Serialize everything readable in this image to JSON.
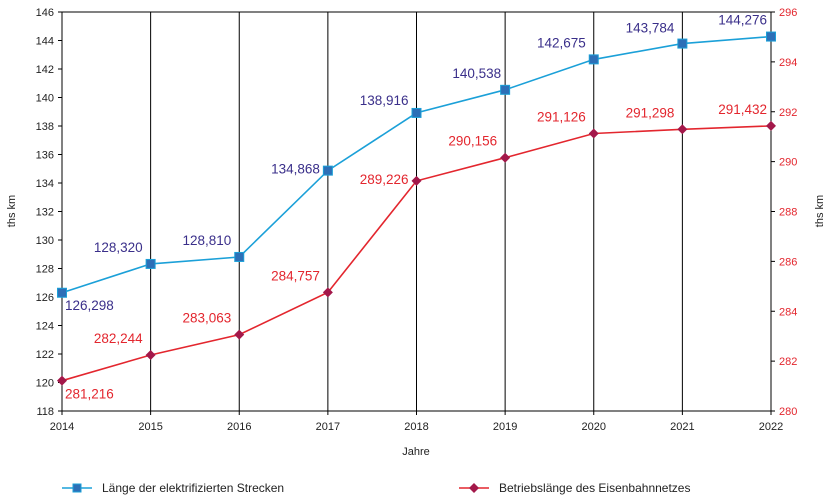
{
  "chart_data": {
    "type": "line",
    "categories": [
      "2014",
      "2015",
      "2016",
      "2017",
      "2018",
      "2019",
      "2020",
      "2021",
      "2022"
    ],
    "xlabel": "Jahre",
    "ylabel_left": "ths km",
    "ylabel_right": "ths km",
    "y_left": {
      "min": 118,
      "max": 146,
      "step": 2
    },
    "y_right": {
      "min": 280,
      "max": 296,
      "step": 2
    },
    "grid": "vertical",
    "legend_position": "bottom",
    "series": [
      {
        "name": "Länge der elektrifizierten Strecken",
        "axis": "left",
        "color": "#1ba0d8",
        "marker_color": "#2d6fb7",
        "marker": "square",
        "values": [
          126.298,
          128.32,
          128.81,
          134.868,
          138.916,
          140.538,
          142.675,
          143.784,
          144.276
        ],
        "labels": [
          "126,298",
          "128,320",
          "128,810",
          "134,868",
          "138,916",
          "140,538",
          "142,675",
          "143,784",
          "144,276"
        ]
      },
      {
        "name": "Betriebslänge des Eisenbahnnetzes",
        "axis": "right",
        "color": "#e3262e",
        "marker_color": "#a3184a",
        "marker": "diamond",
        "values": [
          281.216,
          282.244,
          283.063,
          284.757,
          289.226,
          290.156,
          291.126,
          291.298,
          291.432
        ],
        "labels": [
          "281,216",
          "282,244",
          "283,063",
          "284,757",
          "289,226",
          "290,156",
          "291,126",
          "291,298",
          "291,432"
        ]
      }
    ]
  }
}
